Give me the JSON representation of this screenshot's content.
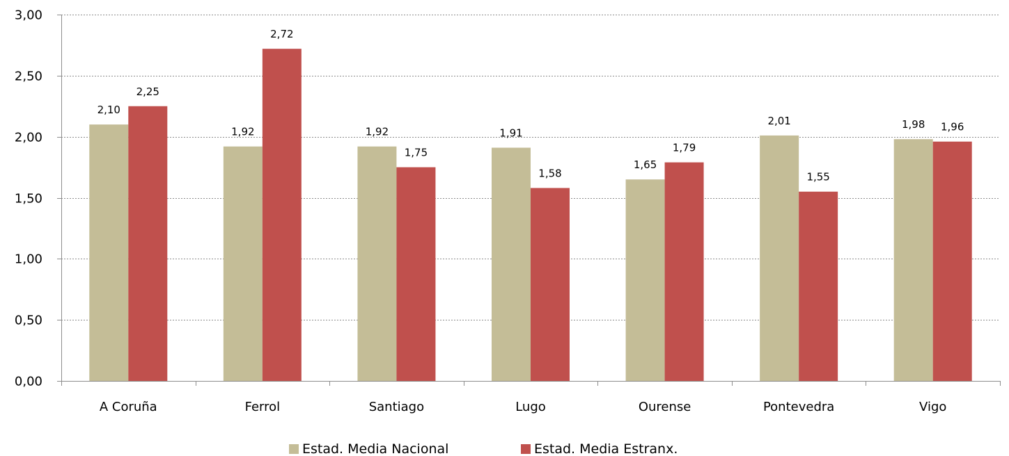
{
  "chart_data": {
    "type": "bar",
    "categories": [
      "A Coruña",
      "Ferrol",
      "Santiago",
      "Lugo",
      "Ourense",
      "Pontevedra",
      "Vigo"
    ],
    "series": [
      {
        "name": "Estad. Media Nacional",
        "color": "#c4bd97",
        "values": [
          2.1,
          1.92,
          1.92,
          1.91,
          1.65,
          2.01,
          1.98
        ],
        "labels": [
          "2,10",
          "1,92",
          "1,92",
          "1,91",
          "1,65",
          "2,01",
          "1,98"
        ]
      },
      {
        "name": "Estad. Media Estranx.",
        "color": "#c0504d",
        "values": [
          2.25,
          2.72,
          1.75,
          1.58,
          1.79,
          1.55,
          1.96
        ],
        "labels": [
          "2,25",
          "2,72",
          "1,75",
          "1,58",
          "1,79",
          "1,55",
          "1,96"
        ]
      }
    ],
    "ylim": [
      0,
      3
    ],
    "yticks": [
      0,
      0.5,
      1,
      1.5,
      2,
      2.5,
      3
    ],
    "ytick_labels": [
      "0,00",
      "0,50",
      "1,00",
      "1,50",
      "2,00",
      "2,50",
      "3,00"
    ],
    "grid": true,
    "legend_position": "bottom"
  }
}
